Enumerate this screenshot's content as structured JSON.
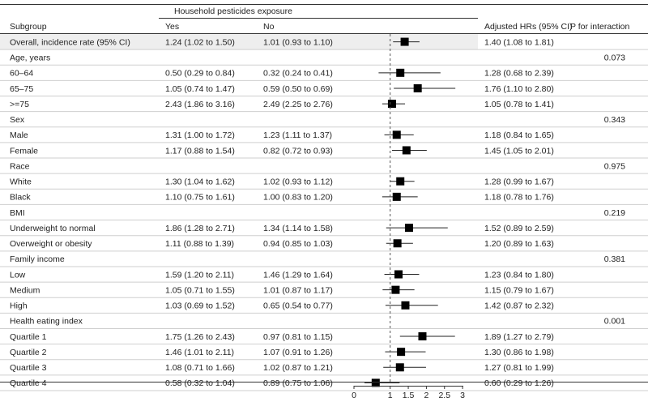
{
  "headers": {
    "group": "Household pesticides exposure",
    "subgroup": "Subgroup",
    "yes": "Yes",
    "no": "No",
    "hr": "Adjusted HRs (95% CI)",
    "p": "P for interaction"
  },
  "chart_data": {
    "type": "forest",
    "x_ticks": [
      "0",
      "1",
      "1.5",
      "2",
      "2.5",
      "3"
    ],
    "reference_line": 1,
    "rows": [
      {
        "label": "Overall, incidence rate (95% CI)",
        "yes": "1.24 (1.02 to 1.50)",
        "no": "1.01 (0.93 to 1.10)",
        "hr_text": "1.40 (1.08 to 1.81)",
        "hr": 1.4,
        "lo": 1.08,
        "hi": 1.81,
        "shaded": true
      },
      {
        "label": "Age, years",
        "header": true,
        "p": "0.073"
      },
      {
        "label": "60–64",
        "yes": "0.50 (0.29 to 0.84)",
        "no": "0.32 (0.24 to 0.41)",
        "hr_text": "1.28 (0.68 to 2.39)",
        "hr": 1.28,
        "lo": 0.68,
        "hi": 2.39
      },
      {
        "label": "65–75",
        "yes": "1.05 (0.74 to 1.47)",
        "no": "0.59 (0.50 to 0.69)",
        "hr_text": "1.76 (1.10 to 2.80)",
        "hr": 1.76,
        "lo": 1.1,
        "hi": 2.8
      },
      {
        "label": ">=75",
        "yes": "2.43 (1.86 to 3.16)",
        "no": "2.49 (2.25 to 2.76)",
        "hr_text": "1.05 (0.78 to 1.41)",
        "hr": 1.05,
        "lo": 0.78,
        "hi": 1.41
      },
      {
        "label": "Sex",
        "header": true,
        "p": "0.343"
      },
      {
        "label": "Male",
        "yes": "1.31 (1.00 to 1.72)",
        "no": "1.23 (1.11 to 1.37)",
        "hr_text": "1.18 (0.84 to 1.65)",
        "hr": 1.18,
        "lo": 0.84,
        "hi": 1.65
      },
      {
        "label": "Female",
        "yes": "1.17 (0.88 to 1.54)",
        "no": "0.82 (0.72 to 0.93)",
        "hr_text": "1.45 (1.05 to 2.01)",
        "hr": 1.45,
        "lo": 1.05,
        "hi": 2.01
      },
      {
        "label": "Race",
        "header": true,
        "p": "0.975"
      },
      {
        "label": "White",
        "yes": "1.30 (1.04 to 1.62)",
        "no": "1.02 (0.93 to 1.12)",
        "hr_text": "1.28 (0.99 to 1.67)",
        "hr": 1.28,
        "lo": 0.99,
        "hi": 1.67
      },
      {
        "label": "Black",
        "yes": "1.10 (0.75 to 1.61)",
        "no": "1.00 (0.83 to 1.20)",
        "hr_text": "1.18 (0.78 to 1.76)",
        "hr": 1.18,
        "lo": 0.78,
        "hi": 1.76
      },
      {
        "label": "BMI",
        "header": true,
        "p": "0.219"
      },
      {
        "label": "Underweight to normal",
        "yes": "1.86 (1.28 to 2.71)",
        "no": "1.34 (1.14 to 1.58)",
        "hr_text": "1.52 (0.89 to 2.59)",
        "hr": 1.52,
        "lo": 0.89,
        "hi": 2.59
      },
      {
        "label": "Overweight or obesity",
        "yes": "1.11 (0.88 to 1.39)",
        "no": "0.94 (0.85 to 1.03)",
        "hr_text": "1.20 (0.89 to 1.63)",
        "hr": 1.2,
        "lo": 0.89,
        "hi": 1.63
      },
      {
        "label": "Family income",
        "header": true,
        "p": "0.381"
      },
      {
        "label": "Low",
        "yes": "1.59 (1.20 to 2.11)",
        "no": "1.46 (1.29 to 1.64)",
        "hr_text": "1.23 (0.84 to 1.80)",
        "hr": 1.23,
        "lo": 0.84,
        "hi": 1.8
      },
      {
        "label": "Medium",
        "yes": "1.05 (0.71 to 1.55)",
        "no": "1.01 (0.87 to 1.17)",
        "hr_text": "1.15 (0.79 to 1.67)",
        "hr": 1.15,
        "lo": 0.79,
        "hi": 1.67
      },
      {
        "label": "High",
        "yes": "1.03 (0.69 to 1.52)",
        "no": "0.65 (0.54 to 0.77)",
        "hr_text": "1.42 (0.87 to 2.32)",
        "hr": 1.42,
        "lo": 0.87,
        "hi": 2.32
      },
      {
        "label": "Health eating index",
        "header": true,
        "p": "0.001"
      },
      {
        "label": "Quartile 1",
        "yes": "1.75 (1.26 to 2.43)",
        "no": "0.97 (0.81 to 1.15)",
        "hr_text": "1.89 (1.27 to 2.79)",
        "hr": 1.89,
        "lo": 1.27,
        "hi": 2.79
      },
      {
        "label": "Quartile 2",
        "yes": "1.46 (1.01 to 2.11)",
        "no": "1.07 (0.91 to 1.26)",
        "hr_text": "1.30 (0.86 to 1.98)",
        "hr": 1.3,
        "lo": 0.86,
        "hi": 1.98
      },
      {
        "label": "Quartile 3",
        "yes": "1.08 (0.71 to 1.66)",
        "no": "1.02 (0.87 to 1.21)",
        "hr_text": "1.27 (0.81 to 1.99)",
        "hr": 1.27,
        "lo": 0.81,
        "hi": 1.99
      },
      {
        "label": "Quartile 4",
        "yes": "0.58 (0.32 to 1.04)",
        "no": "0.89 (0.75 to 1.06)",
        "hr_text": "0.60 (0.29 to 1.26)",
        "hr": 0.6,
        "lo": 0.29,
        "hi": 1.26
      }
    ]
  }
}
